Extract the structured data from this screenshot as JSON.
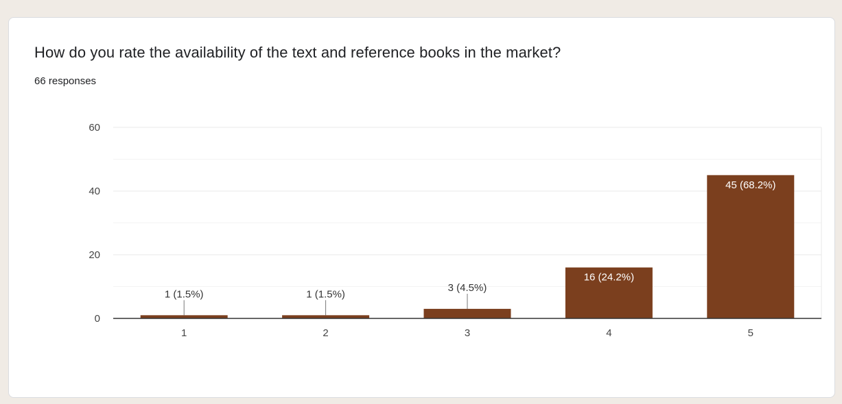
{
  "question": {
    "title": "How do you rate the availability of the text and reference books in the market?",
    "responses": "66 responses"
  },
  "colors": {
    "bar": "#7b3f1e",
    "grid": "#e8e8e8",
    "axis": "#333333",
    "label_dark": "#333333",
    "label_light": "#ffffff"
  },
  "chart_data": {
    "type": "bar",
    "categories": [
      "1",
      "2",
      "3",
      "4",
      "5"
    ],
    "values": [
      1,
      1,
      3,
      16,
      45
    ],
    "data_labels": [
      "1 (1.5%)",
      "1 (1.5%)",
      "3 (4.5%)",
      "16 (24.2%)",
      "45 (68.2%)"
    ],
    "ylim": [
      0,
      60
    ],
    "yticks": [
      0,
      20,
      40,
      60
    ],
    "minor_yticks": [
      10,
      30,
      50
    ],
    "title": "",
    "xlabel": "",
    "ylabel": "",
    "grid": true
  }
}
